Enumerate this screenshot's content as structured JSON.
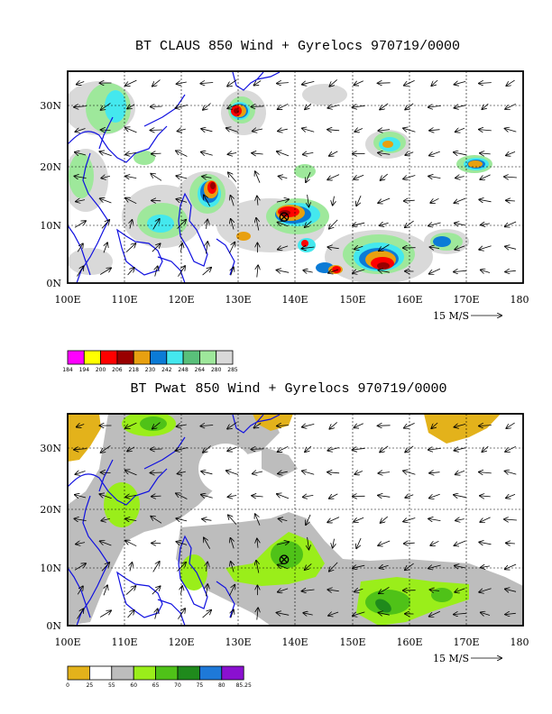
{
  "panels": [
    {
      "title": "BT CLAUS 850 Wind + Gyrelocs 970719/0000",
      "x_ticks": [
        "100E",
        "110E",
        "120E",
        "130E",
        "140E",
        "150E",
        "160E",
        "170E",
        "180"
      ],
      "y_ticks": [
        "30N",
        "20N",
        "10N",
        "0N"
      ],
      "ref_vector_label": "15 M/S",
      "colorbar": {
        "labels": [
          "184",
          "194",
          "200",
          "206",
          "218",
          "230",
          "242",
          "248",
          "264",
          "280",
          "285"
        ],
        "colors": [
          "#ff00ff",
          "#ffff00",
          "#ff0000",
          "#990000",
          "#e8a010",
          "#0b7bd6",
          "#44e8ee",
          "#59c07a",
          "#9ee89b",
          "#d9d9d9"
        ]
      },
      "gyre_marker": "⊗"
    },
    {
      "title": "BT Pwat 850 Wind + Gyrelocs 970719/0000",
      "x_ticks": [
        "100E",
        "110E",
        "120E",
        "130E",
        "140E",
        "150E",
        "160E",
        "170E",
        "180"
      ],
      "y_ticks": [
        "30N",
        "20N",
        "10N",
        "0N"
      ],
      "ref_vector_label": "15 M/S",
      "colorbar": {
        "labels": [
          "0",
          "25",
          "55",
          "60",
          "65",
          "70",
          "75",
          "80",
          "85.25"
        ],
        "colors": [
          "#e3b21b",
          "#ffffff",
          "#bdbdbd",
          "#9aee1a",
          "#4fc218",
          "#1f8a1c",
          "#1e79d8",
          "#8a10d0"
        ]
      },
      "gyre_marker": "⊗"
    }
  ]
}
